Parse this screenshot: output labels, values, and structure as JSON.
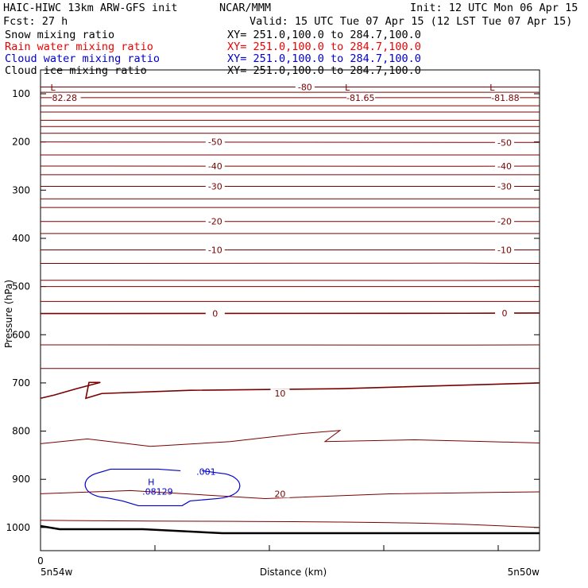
{
  "header": {
    "title_left": "HAIC-HIWC 13km ARW-GFS init",
    "center": "NCAR/MMM",
    "init": "Init: 12 UTC Mon 06 Apr 15",
    "fcst": "Fcst:   27 h",
    "valid": "Valid: 15 UTC Tue 07 Apr 15 (12 LST Tue 07 Apr 15)"
  },
  "fields": [
    {
      "name": "Snow mixing ratio",
      "xy": "XY= 251.0,100.0 to 284.7,100.0",
      "color": "#000000"
    },
    {
      "name": "Rain water mixing ratio",
      "xy": "XY= 251.0,100.0 to 284.7,100.0",
      "color": "#ee0000"
    },
    {
      "name": "Cloud water mixing ratio",
      "xy": "XY= 251.0,100.0 to 284.7,100.0",
      "color": "#0000cc"
    },
    {
      "name": "Cloud ice mixing ratio",
      "xy": "XY= 251.0,100.0 to 284.7,100.0",
      "color": "#000000"
    }
  ],
  "chart_data": {
    "type": "cross-section contour",
    "ylabel": "Pressure (hPa)",
    "xlabel": "Distance (km)",
    "x_left_label": "5n54w",
    "x_right_label": "5n50w",
    "x_origin_label": "0",
    "yticks": [
      100,
      200,
      300,
      400,
      500,
      600,
      700,
      800,
      900,
      1000
    ],
    "ylim": [
      1050,
      80
    ],
    "xlim": [
      0,
      1
    ],
    "grid": false,
    "temperature_contour_color": "#7a0000",
    "cloud_water_contour_color": "#0000cc",
    "temperature_contours": [
      {
        "label": "-80",
        "p": [
          86,
          86,
          86
        ]
      },
      {
        "label": "",
        "p": [
          97,
          97,
          97
        ]
      },
      {
        "label": "",
        "p": [
          108,
          108,
          108
        ]
      },
      {
        "label": "",
        "p": [
          125,
          125,
          125
        ]
      },
      {
        "label": "",
        "p": [
          138,
          138,
          138
        ]
      },
      {
        "label": "",
        "p": [
          155,
          155,
          155
        ]
      },
      {
        "label": "",
        "p": [
          168,
          168,
          168
        ]
      },
      {
        "label": "",
        "p": [
          182,
          182,
          182
        ]
      },
      {
        "label": "-50",
        "p": [
          200,
          201,
          201
        ]
      },
      {
        "label": "",
        "p": [
          227,
          227,
          227
        ]
      },
      {
        "label": "-40",
        "p": [
          250,
          251,
          250
        ]
      },
      {
        "label": "",
        "p": [
          268,
          268,
          268
        ]
      },
      {
        "label": "-30",
        "p": [
          292,
          292,
          292
        ]
      },
      {
        "label": "",
        "p": [
          318,
          318,
          318
        ]
      },
      {
        "label": "",
        "p": [
          336,
          336,
          336
        ]
      },
      {
        "label": "-20",
        "p": [
          365,
          365,
          365
        ]
      },
      {
        "label": "",
        "p": [
          390,
          390,
          390
        ]
      },
      {
        "label": "-10",
        "p": [
          424,
          424,
          424
        ]
      },
      {
        "label": "",
        "p": [
          452,
          451,
          452
        ]
      },
      {
        "label": "",
        "p": [
          487,
          488,
          487
        ]
      },
      {
        "label": "",
        "p": [
          500,
          500,
          500
        ]
      },
      {
        "label": "",
        "p": [
          531,
          531,
          531
        ]
      },
      {
        "label": "0",
        "p": [
          556,
          556,
          555
        ]
      },
      {
        "label": "",
        "p": [
          621,
          622,
          621
        ]
      },
      {
        "label": "",
        "p": [
          670,
          670,
          670
        ]
      },
      {
        "label": "10",
        "p": [
          722,
          712,
          700
        ]
      },
      {
        "label": "",
        "p": [
          826,
          835,
          818
        ]
      },
      {
        "label": "20",
        "p": [
          930,
          940,
          926
        ]
      },
      {
        "label": "",
        "p": [
          985,
          987,
          1000
        ]
      }
    ],
    "extremes": [
      {
        "marker": "L",
        "value": "82.28",
        "x": 0.02,
        "p": 93
      },
      {
        "marker": "L",
        "value": "-81.65",
        "x": 0.61,
        "p": 93
      },
      {
        "marker": "L",
        "value": "-81.88",
        "x": 0.9,
        "p": 93
      }
    ],
    "cloud_water": {
      "contour_label": ".001",
      "max_marker": "H",
      "max_value": ".08129",
      "max_x": 0.22,
      "max_p": 935
    }
  }
}
